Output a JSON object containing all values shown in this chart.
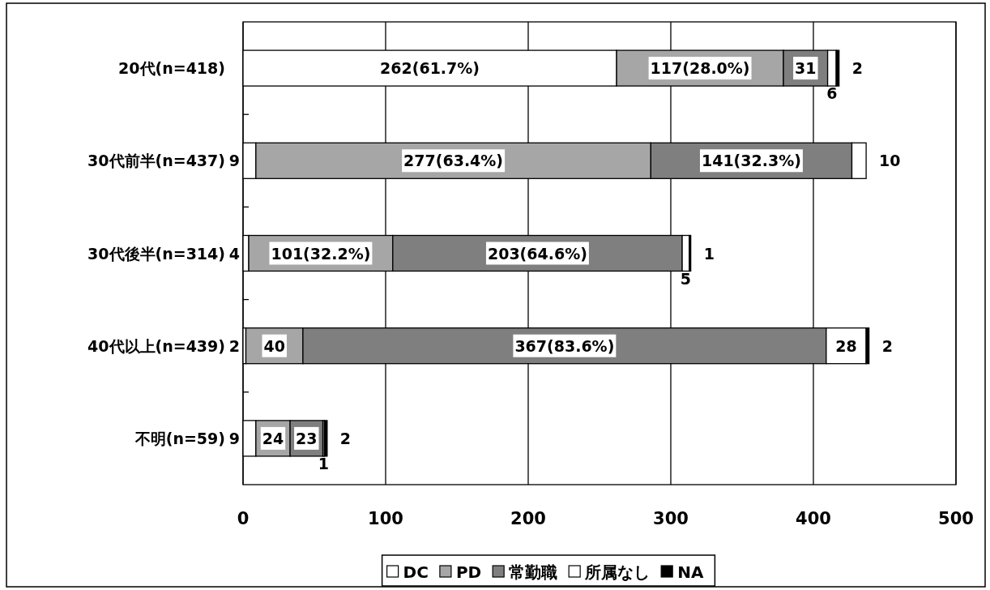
{
  "chart_data": {
    "type": "bar",
    "orientation": "horizontal",
    "stacked": true,
    "categories": [
      "20代(n=418)",
      "30代前半(n=437)",
      "30代後半(n=314)",
      "40代以上(n=439)",
      "不明(n=59)"
    ],
    "series": [
      {
        "name": "DC",
        "color": "#ffffff",
        "values": [
          262,
          9,
          4,
          2,
          9
        ],
        "value_labels": [
          "262(61.7%)",
          "9",
          "4",
          "2",
          "9"
        ]
      },
      {
        "name": "PD",
        "color": "#a6a6a6",
        "values": [
          117,
          277,
          101,
          40,
          24
        ],
        "value_labels": [
          "117(28.0%)",
          "277(63.4%)",
          "101(32.2%)",
          "40",
          "24"
        ]
      },
      {
        "name": "常勤職",
        "color": "#7f7f7f",
        "values": [
          31,
          141,
          203,
          367,
          23
        ],
        "value_labels": [
          "31",
          "141(32.3%)",
          "203(64.6%)",
          "367(83.6%)",
          "23"
        ]
      },
      {
        "name": "所属なし",
        "color": "#ffffff",
        "values": [
          6,
          10,
          5,
          28,
          1
        ],
        "value_labels": [
          "6",
          "10",
          "5",
          "28",
          "1"
        ]
      },
      {
        "name": "NA",
        "color": "#000000",
        "values": [
          2,
          0,
          1,
          2,
          2
        ],
        "value_labels": [
          "2",
          null,
          "1",
          "2",
          "2"
        ]
      }
    ],
    "xlim": [
      0,
      500
    ],
    "xticks": [
      0,
      100,
      200,
      300,
      400,
      500
    ],
    "grid": "x",
    "legend": "bottom"
  }
}
